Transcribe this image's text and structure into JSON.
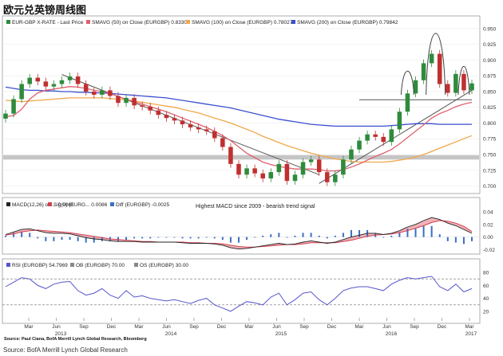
{
  "title": "欧元兑英镑周线图",
  "legend_main": [
    {
      "label": "EUR-GBP X-RATE - Last Price",
      "color": "#2e8b3c"
    },
    {
      "label": "SMAVG (50) on Close (EURGBP) 0.83301",
      "color": "#e06070"
    },
    {
      "label": "SMAVG (100) on Close (EURGBP) 0.78027",
      "color": "#f0a84a"
    },
    {
      "label": "SMAVG (200) on Close (EURGBP) 0.79842",
      "color": "#3a4fd0"
    }
  ],
  "legend_macd": [
    {
      "label": "MACD(12,26) on ... 0.0061",
      "color": "#222222"
    },
    {
      "label": "Sig(9) (EURG... 0.0086",
      "color": "#d04050"
    },
    {
      "label": "Diff (EURGBP) -0.0025",
      "color": "#3a6fc0"
    }
  ],
  "macd_note": "Highest MACD since 2009 - bearish trend signal",
  "legend_rsi": [
    {
      "label": "RSI (EURGBP) 54.7969",
      "color": "#5555cc"
    },
    {
      "label": "OB (EURGBP) 70.00",
      "color": "#888888"
    },
    {
      "label": "OS (EURGBP) 30.00",
      "color": "#888888"
    }
  ],
  "inner_source": "Source: Paul Ciana, BofA Merrill Lynch Global Research, Bloomberg",
  "source": "Source: BofA Merrill Lynch Global Research",
  "colors": {
    "up": "#2e8b3c",
    "down": "#c03030",
    "band": "#bbbbbb",
    "trend": "#555555"
  },
  "chart_data": {
    "type": "line",
    "title": "欧元兑英镑周线图",
    "x_ticks": [
      "Mar",
      "Jun",
      "Sep",
      "Dec",
      "Mar",
      "Jun",
      "Sep",
      "Dec",
      "Mar",
      "Jun",
      "Sep",
      "Dec",
      "Mar",
      "Jun",
      "Sep",
      "Dec",
      "Mar"
    ],
    "year_labels": [
      "2013",
      "2014",
      "2015",
      "2016",
      "2017"
    ],
    "price_axis": {
      "ticks": [
        "0.950",
        "0.925",
        "0.900",
        "0.875",
        "0.850",
        "0.825",
        "0.800",
        "0.775",
        "0.750",
        "0.725",
        "0.700"
      ],
      "ylim": [
        0.688,
        0.955
      ]
    },
    "macd_axis": {
      "ticks": [
        "0.04",
        "0.02",
        "0.00",
        "-0.02"
      ],
      "ylim": [
        -0.027,
        0.045
      ]
    },
    "rsi_axis": {
      "ticks": [
        "80",
        "60",
        "40",
        "20"
      ],
      "ylim": [
        10,
        90
      ]
    },
    "support_band": [
      0.742,
      0.749
    ],
    "series": [
      {
        "name": "EUR-GBP X-RATE - Last Price",
        "values": [
          0.815,
          0.838,
          0.862,
          0.872,
          0.866,
          0.858,
          0.862,
          0.868,
          0.874,
          0.862,
          0.85,
          0.845,
          0.852,
          0.843,
          0.832,
          0.84,
          0.828,
          0.826,
          0.82,
          0.813,
          0.808,
          0.804,
          0.798,
          0.793,
          0.79,
          0.787,
          0.776,
          0.762,
          0.735,
          0.718,
          0.728,
          0.72,
          0.712,
          0.722,
          0.735,
          0.708,
          0.718,
          0.738,
          0.742,
          0.722,
          0.706,
          0.718,
          0.742,
          0.758,
          0.772,
          0.782,
          0.778,
          0.77,
          0.79,
          0.818,
          0.847,
          0.868,
          0.895,
          0.91,
          0.862,
          0.848,
          0.878,
          0.852,
          0.863
        ]
      },
      {
        "name": "SMAVG (50) on Close (EURGBP) 0.83301",
        "values": [
          0.81,
          0.812,
          0.822,
          0.838,
          0.848,
          0.852,
          0.854,
          0.856,
          0.858,
          0.857,
          0.855,
          0.852,
          0.85,
          0.847,
          0.842,
          0.838,
          0.834,
          0.83,
          0.826,
          0.822,
          0.818,
          0.813,
          0.808,
          0.803,
          0.798,
          0.793,
          0.787,
          0.78,
          0.772,
          0.762,
          0.752,
          0.745,
          0.738,
          0.734,
          0.731,
          0.729,
          0.727,
          0.727,
          0.727,
          0.726,
          0.724,
          0.724,
          0.726,
          0.73,
          0.735,
          0.741,
          0.747,
          0.752,
          0.758,
          0.767,
          0.777,
          0.787,
          0.797,
          0.808,
          0.815,
          0.82,
          0.826,
          0.83,
          0.833
        ]
      },
      {
        "name": "SMAVG (100) on Close (EURGBP) 0.78027",
        "values": [
          0.836,
          0.835,
          0.834,
          0.835,
          0.836,
          0.837,
          0.838,
          0.839,
          0.84,
          0.84,
          0.84,
          0.84,
          0.84,
          0.839,
          0.838,
          0.837,
          0.835,
          0.833,
          0.831,
          0.829,
          0.827,
          0.825,
          0.822,
          0.819,
          0.816,
          0.812,
          0.808,
          0.804,
          0.8,
          0.795,
          0.79,
          0.785,
          0.779,
          0.774,
          0.769,
          0.764,
          0.76,
          0.756,
          0.752,
          0.749,
          0.746,
          0.743,
          0.741,
          0.739,
          0.738,
          0.738,
          0.738,
          0.738,
          0.739,
          0.741,
          0.743,
          0.746,
          0.75,
          0.755,
          0.76,
          0.765,
          0.77,
          0.775,
          0.78
        ]
      },
      {
        "name": "SMAVG (200) on Close (EURGBP) 0.79842",
        "values": [
          0.857,
          0.855,
          0.853,
          0.852,
          0.852,
          0.851,
          0.851,
          0.85,
          0.85,
          0.849,
          0.849,
          0.848,
          0.848,
          0.847,
          0.846,
          0.845,
          0.844,
          0.843,
          0.842,
          0.841,
          0.84,
          0.838,
          0.836,
          0.834,
          0.832,
          0.83,
          0.828,
          0.826,
          0.824,
          0.821,
          0.818,
          0.815,
          0.812,
          0.809,
          0.806,
          0.804,
          0.802,
          0.8,
          0.798,
          0.797,
          0.796,
          0.795,
          0.795,
          0.795,
          0.795,
          0.795,
          0.795,
          0.795,
          0.796,
          0.797,
          0.798,
          0.799,
          0.799,
          0.799,
          0.798,
          0.798,
          0.798,
          0.798,
          0.798
        ]
      },
      {
        "name": "MACD(12,26) on ... 0.0061",
        "values": [
          0.004,
          0.008,
          0.012,
          0.013,
          0.01,
          0.007,
          0.006,
          0.006,
          0.005,
          0.002,
          -0.001,
          -0.003,
          -0.004,
          -0.006,
          -0.007,
          -0.007,
          -0.007,
          -0.008,
          -0.008,
          -0.008,
          -0.008,
          -0.008,
          -0.009,
          -0.01,
          -0.01,
          -0.01,
          -0.011,
          -0.013,
          -0.017,
          -0.019,
          -0.018,
          -0.016,
          -0.014,
          -0.012,
          -0.01,
          -0.012,
          -0.011,
          -0.008,
          -0.006,
          -0.008,
          -0.01,
          -0.008,
          -0.004,
          0.0,
          0.003,
          0.006,
          0.006,
          0.004,
          0.006,
          0.01,
          0.016,
          0.02,
          0.026,
          0.031,
          0.028,
          0.022,
          0.018,
          0.012,
          0.006
        ]
      },
      {
        "name": "Sig(9) (EURG... 0.0086",
        "values": [
          0.003,
          0.005,
          0.008,
          0.01,
          0.011,
          0.01,
          0.009,
          0.008,
          0.007,
          0.005,
          0.003,
          0.001,
          -0.001,
          -0.003,
          -0.004,
          -0.005,
          -0.006,
          -0.007,
          -0.007,
          -0.008,
          -0.008,
          -0.008,
          -0.008,
          -0.009,
          -0.009,
          -0.01,
          -0.01,
          -0.011,
          -0.013,
          -0.015,
          -0.016,
          -0.016,
          -0.015,
          -0.014,
          -0.013,
          -0.012,
          -0.012,
          -0.011,
          -0.009,
          -0.009,
          -0.009,
          -0.009,
          -0.007,
          -0.005,
          -0.002,
          0.001,
          0.003,
          0.004,
          0.005,
          0.007,
          0.01,
          0.014,
          0.018,
          0.023,
          0.026,
          0.025,
          0.022,
          0.017,
          0.009
        ]
      },
      {
        "name": "RSI (EURGBP) 54.7969",
        "values": [
          58,
          65,
          72,
          70,
          60,
          55,
          62,
          65,
          66,
          52,
          45,
          48,
          55,
          45,
          40,
          52,
          42,
          44,
          40,
          38,
          36,
          38,
          35,
          32,
          37,
          40,
          30,
          25,
          20,
          28,
          35,
          33,
          30,
          42,
          48,
          30,
          38,
          48,
          50,
          38,
          30,
          40,
          52,
          56,
          58,
          58,
          55,
          52,
          62,
          68,
          72,
          70,
          72,
          74,
          58,
          52,
          62,
          50,
          55
        ]
      }
    ]
  }
}
